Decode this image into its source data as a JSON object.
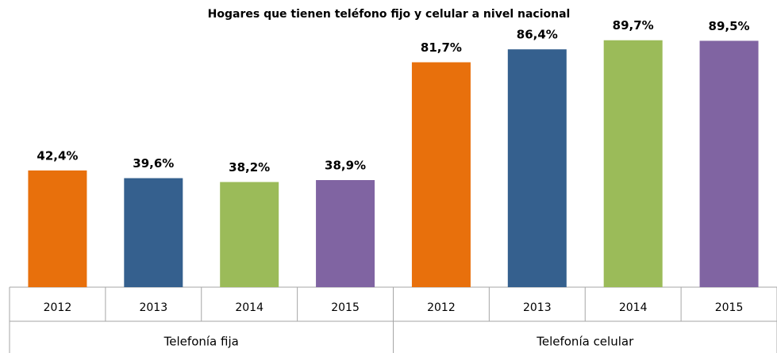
{
  "chart_data": {
    "type": "bar",
    "title": "Hogares que tienen teléfono fijo y celular a nivel nacional",
    "colors": [
      "#e8700c",
      "#35608e",
      "#9bbb59",
      "#8064a2"
    ],
    "ylim": [
      0,
      100
    ],
    "groups": [
      {
        "name": "Telefonía fija",
        "categories": [
          "2012",
          "2013",
          "2014",
          "2015"
        ],
        "values": [
          42.4,
          39.6,
          38.2,
          38.9
        ],
        "value_labels": [
          "42,4%",
          "39,6%",
          "38,2%",
          "38,9%"
        ]
      },
      {
        "name": "Telefonía celular",
        "categories": [
          "2012",
          "2013",
          "2014",
          "2015"
        ],
        "values": [
          81.7,
          86.4,
          89.7,
          89.5
        ],
        "value_labels": [
          "81,7%",
          "86,4%",
          "89,7%",
          "89,5%"
        ]
      }
    ]
  }
}
